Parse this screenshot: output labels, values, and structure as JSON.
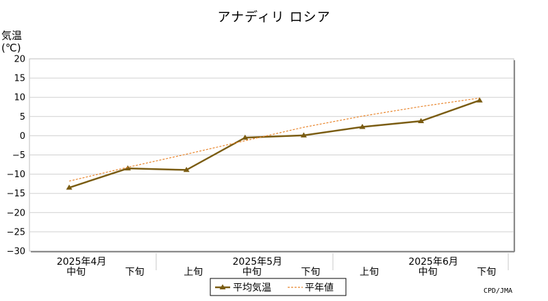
{
  "chart_data": {
    "type": "line",
    "title": "アナディリ ロシア",
    "ylabel": "気温",
    "ylabel_unit": "(℃)",
    "ylim": [
      -30,
      20
    ],
    "yticks": [
      20,
      15,
      10,
      5,
      0,
      -5,
      -10,
      -15,
      -20,
      -25,
      -30
    ],
    "grid": true,
    "x_tick_labels": [
      "中旬",
      "下旬",
      "上旬",
      "中旬",
      "下旬",
      "上旬",
      "中旬",
      "下旬"
    ],
    "month_labels": [
      {
        "label": "2025年4月",
        "index": 0
      },
      {
        "label": "2025年5月",
        "index": 3
      },
      {
        "label": "2025年6月",
        "index": 6
      }
    ],
    "series": [
      {
        "name": "平均気温",
        "style": "solid-triangle",
        "color": "#7a5c12",
        "values": [
          -13.5,
          -8.5,
          -8.9,
          -0.5,
          0.1,
          2.3,
          3.8,
          9.2
        ]
      },
      {
        "name": "平年値",
        "style": "dashed",
        "color": "#e8842a",
        "values": [
          -11.8,
          -8.2,
          -4.8,
          -1.3,
          2.2,
          5.1,
          7.6,
          9.8
        ]
      }
    ],
    "legend_position": "bottom-center",
    "credit": "CPD/JMA"
  }
}
